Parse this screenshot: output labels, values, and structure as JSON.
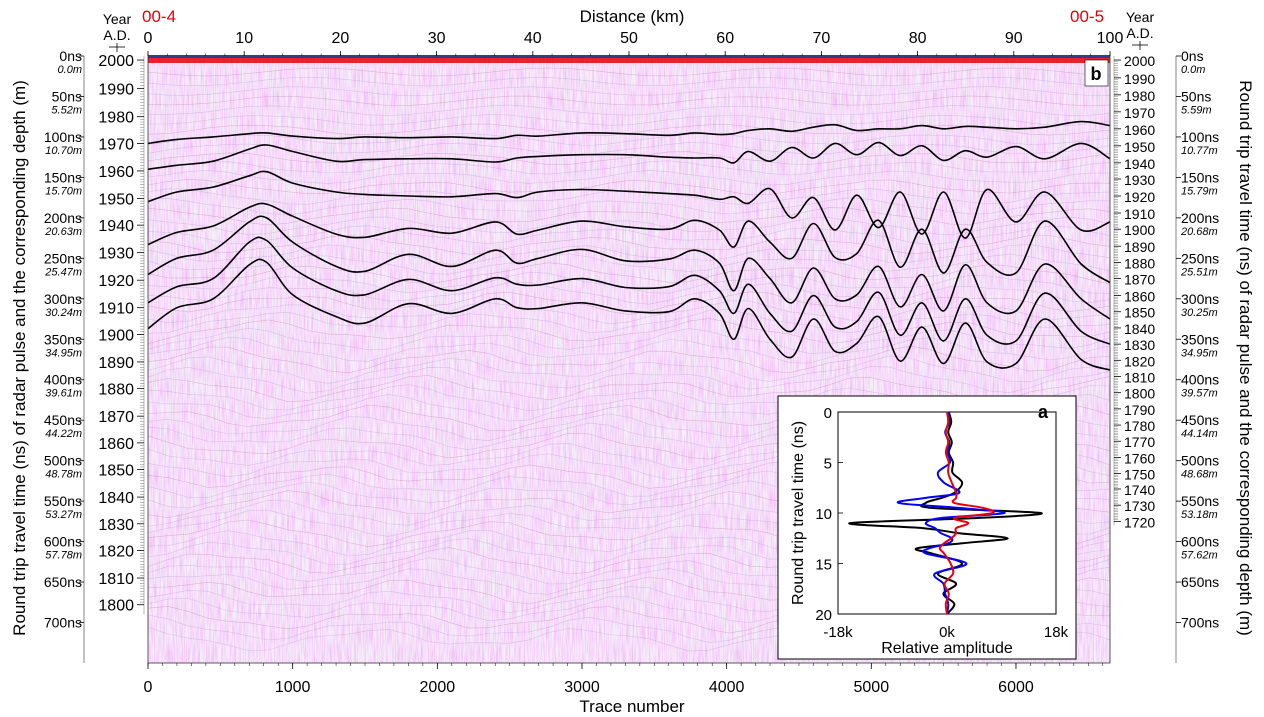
{
  "chart_data": [
    {
      "panel": "b",
      "type": "line",
      "top_left_label": "00-4",
      "top_right_label": "00-5",
      "title_top": "Distance (km)",
      "xlabel": "Trace number",
      "ylabel_left": "Round trip travel time (ns) of radar pulse and the corresponding depth (m)",
      "ylabel_right": "Round trip travel time (ns) of radar pulse and the corresponding depth (m)",
      "year_label": "Year",
      "year_label_sub": "A.D.",
      "accent_color": "#e8000b",
      "line_color": "#000000",
      "x_trace_range": [
        0,
        6650
      ],
      "x_trace_ticks": [
        "0",
        "1000",
        "2000",
        "3000",
        "4000",
        "5000",
        "6000"
      ],
      "distance_ticks": [
        "0",
        "10",
        "20",
        "30",
        "40",
        "50",
        "60",
        "70",
        "80",
        "90",
        "100"
      ],
      "distance_range": [
        0,
        100
      ],
      "y_range_ns": [
        0,
        750
      ],
      "left_time_ticks": [
        {
          "t": 0,
          "ns": "0ns",
          "depth": "0.0m"
        },
        {
          "t": 50,
          "ns": "50ns",
          "depth": "5.52m"
        },
        {
          "t": 100,
          "ns": "100ns",
          "depth": "10.70m"
        },
        {
          "t": 150,
          "ns": "150ns",
          "depth": "15.70m"
        },
        {
          "t": 200,
          "ns": "200ns",
          "depth": "20.63m"
        },
        {
          "t": 250,
          "ns": "250ns",
          "depth": "25.47m"
        },
        {
          "t": 300,
          "ns": "300ns",
          "depth": "30.24m"
        },
        {
          "t": 350,
          "ns": "350ns",
          "depth": "34.95m"
        },
        {
          "t": 400,
          "ns": "400ns",
          "depth": "39.61m"
        },
        {
          "t": 450,
          "ns": "450ns",
          "depth": "44.22m"
        },
        {
          "t": 500,
          "ns": "500ns",
          "depth": "48.78m"
        },
        {
          "t": 550,
          "ns": "550ns",
          "depth": "53.27m"
        },
        {
          "t": 600,
          "ns": "600ns",
          "depth": "57.78m"
        },
        {
          "t": 650,
          "ns": "650ns",
          "depth": ""
        },
        {
          "t": 700,
          "ns": "700ns",
          "depth": ""
        }
      ],
      "right_time_ticks": [
        {
          "t": 0,
          "ns": "0ns",
          "depth": "0.0m"
        },
        {
          "t": 50,
          "ns": "50ns",
          "depth": "5.59m"
        },
        {
          "t": 100,
          "ns": "100ns",
          "depth": "10.77m"
        },
        {
          "t": 150,
          "ns": "150ns",
          "depth": "15.79m"
        },
        {
          "t": 200,
          "ns": "200ns",
          "depth": "20.68m"
        },
        {
          "t": 250,
          "ns": "250ns",
          "depth": "25.51m"
        },
        {
          "t": 300,
          "ns": "300ns",
          "depth": "30.25m"
        },
        {
          "t": 350,
          "ns": "350ns",
          "depth": "34.95m"
        },
        {
          "t": 400,
          "ns": "400ns",
          "depth": "39.57m"
        },
        {
          "t": 450,
          "ns": "450ns",
          "depth": "44.14m"
        },
        {
          "t": 500,
          "ns": "500ns",
          "depth": "48.68m"
        },
        {
          "t": 550,
          "ns": "550ns",
          "depth": "53.18m"
        },
        {
          "t": 600,
          "ns": "600ns",
          "depth": "57.62m"
        },
        {
          "t": 650,
          "ns": "650ns",
          "depth": ""
        },
        {
          "t": 700,
          "ns": "700ns",
          "depth": ""
        }
      ],
      "left_year_ticks": [
        {
          "year": "2000",
          "t": 5
        },
        {
          "year": "1990",
          "t": 40
        },
        {
          "year": "1980",
          "t": 75
        },
        {
          "year": "1970",
          "t": 108
        },
        {
          "year": "1960",
          "t": 142
        },
        {
          "year": "1950",
          "t": 176
        },
        {
          "year": "1940",
          "t": 209
        },
        {
          "year": "1930",
          "t": 243
        },
        {
          "year": "1920",
          "t": 277
        },
        {
          "year": "1910",
          "t": 311
        },
        {
          "year": "1900",
          "t": 344
        },
        {
          "year": "1890",
          "t": 378
        },
        {
          "year": "1880",
          "t": 411
        },
        {
          "year": "1870",
          "t": 445
        },
        {
          "year": "1860",
          "t": 478
        },
        {
          "year": "1850",
          "t": 511
        },
        {
          "year": "1840",
          "t": 545
        },
        {
          "year": "1830",
          "t": 578
        },
        {
          "year": "1820",
          "t": 611
        },
        {
          "year": "1810",
          "t": 645
        },
        {
          "year": "1800",
          "t": 678
        }
      ],
      "right_year_ticks": [
        {
          "year": "2000",
          "t": 5
        },
        {
          "year": "1990",
          "t": 27
        },
        {
          "year": "1980",
          "t": 48
        },
        {
          "year": "1970",
          "t": 69
        },
        {
          "year": "1960",
          "t": 90
        },
        {
          "year": "1950",
          "t": 111
        },
        {
          "year": "1940",
          "t": 132
        },
        {
          "year": "1930",
          "t": 152
        },
        {
          "year": "1920",
          "t": 173
        },
        {
          "year": "1910",
          "t": 194
        },
        {
          "year": "1900",
          "t": 214
        },
        {
          "year": "1890",
          "t": 235
        },
        {
          "year": "1880",
          "t": 255
        },
        {
          "year": "1870",
          "t": 275
        },
        {
          "year": "1860",
          "t": 296
        },
        {
          "year": "1850",
          "t": 316
        },
        {
          "year": "1840",
          "t": 336
        },
        {
          "year": "1830",
          "t": 356
        },
        {
          "year": "1820",
          "t": 376
        },
        {
          "year": "1810",
          "t": 396
        },
        {
          "year": "1800",
          "t": 416
        },
        {
          "year": "1790",
          "t": 436
        },
        {
          "year": "1780",
          "t": 456
        },
        {
          "year": "1770",
          "t": 476
        },
        {
          "year": "1760",
          "t": 496
        },
        {
          "year": "1750",
          "t": 516
        },
        {
          "year": "1740",
          "t": 535
        },
        {
          "year": "1730",
          "t": 555
        },
        {
          "year": "1720",
          "t": 575
        }
      ],
      "horizons_traces": [
        0,
        200,
        450,
        700,
        820,
        1000,
        1300,
        1500,
        1800,
        2100,
        2400,
        2550,
        2700,
        3000,
        3300,
        3600,
        3780,
        3950,
        4050,
        4150,
        4300,
        4450,
        4600,
        4750,
        4900,
        5050,
        5200,
        5350,
        5500,
        5650,
        5800,
        6000,
        6200,
        6450,
        6650
      ],
      "horizons": [
        {
          "name": "1970",
          "t": [
            108,
            103,
            100,
            96,
            95,
            99,
            102,
            100,
            101,
            100,
            102,
            98,
            99,
            95,
            96,
            98,
            95,
            97,
            96,
            92,
            90,
            93,
            88,
            85,
            92,
            90,
            90,
            86,
            90,
            87,
            88,
            90,
            88,
            81,
            86
          ]
        },
        {
          "name": "1950",
          "t": [
            140,
            135,
            130,
            115,
            110,
            118,
            130,
            128,
            127,
            127,
            131,
            126,
            124,
            122,
            122,
            125,
            126,
            126,
            132,
            118,
            130,
            113,
            126,
            108,
            122,
            107,
            123,
            111,
            129,
            117,
            125,
            112,
            127,
            108,
            127
          ]
        },
        {
          "name": "1920",
          "t": [
            180,
            168,
            162,
            148,
            143,
            157,
            168,
            171,
            173,
            174,
            170,
            175,
            168,
            165,
            167,
            170,
            172,
            177,
            174,
            182,
            164,
            200,
            175,
            215,
            172,
            212,
            168,
            220,
            168,
            225,
            165,
            205,
            168,
            215,
            205
          ]
        },
        {
          "name": "1890",
          "t": [
            233,
            218,
            210,
            187,
            183,
            198,
            220,
            224,
            213,
            219,
            205,
            220,
            215,
            204,
            211,
            214,
            203,
            215,
            236,
            204,
            230,
            250,
            207,
            249,
            244,
            203,
            261,
            214,
            268,
            214,
            255,
            268,
            204,
            257,
            280
          ]
        },
        {
          "name": "1870",
          "t": [
            270,
            250,
            240,
            205,
            200,
            230,
            260,
            266,
            245,
            260,
            240,
            256,
            250,
            239,
            253,
            251,
            240,
            256,
            290,
            250,
            275,
            305,
            262,
            300,
            295,
            260,
            310,
            270,
            315,
            258,
            305,
            315,
            257,
            300,
            325
          ]
        },
        {
          "name": "1850",
          "t": [
            305,
            285,
            275,
            230,
            228,
            262,
            290,
            295,
            276,
            290,
            274,
            282,
            283,
            275,
            286,
            285,
            271,
            290,
            318,
            282,
            318,
            340,
            296,
            335,
            328,
            292,
            345,
            305,
            352,
            300,
            345,
            352,
            293,
            340,
            356
          ]
        },
        {
          "name": "1830",
          "t": [
            337,
            311,
            300,
            258,
            255,
            295,
            322,
            330,
            306,
            318,
            300,
            311,
            312,
            305,
            315,
            316,
            300,
            318,
            350,
            312,
            350,
            372,
            325,
            365,
            355,
            322,
            377,
            335,
            380,
            330,
            378,
            380,
            325,
            375,
            388
          ]
        }
      ]
    },
    {
      "panel": "a",
      "type": "line",
      "xlabel": "Relative amplitude",
      "ylabel": "Round trip travel time (ns)",
      "xlim": [
        -18000,
        18000
      ],
      "ylim": [
        0,
        20
      ],
      "x_ticks": [
        "-18k",
        "0k",
        "18k"
      ],
      "y_ticks": [
        "0",
        "5",
        "10",
        "15",
        "20"
      ],
      "t": [
        0,
        1,
        2,
        3,
        4,
        5,
        6,
        7,
        8,
        8.5,
        9,
        9.5,
        10,
        10.5,
        11,
        11.5,
        12,
        12.5,
        13,
        13.5,
        14,
        15,
        16,
        17,
        18,
        19,
        20
      ],
      "series": [
        {
          "color": "#000000",
          "values": [
            300,
            700,
            200,
            800,
            300,
            1000,
            900,
            2500,
            1200,
            -900,
            -3500,
            -2500,
            15500,
            5000,
            -16000,
            -4000,
            2000,
            10000,
            2500,
            -5000,
            -2500,
            2500,
            -1500,
            1500,
            -600,
            1200,
            0
          ]
        },
        {
          "color": "#0000ff",
          "values": [
            200,
            400,
            -300,
            400,
            100,
            500,
            -1500,
            -500,
            2000,
            -3500,
            -8000,
            2000,
            9500,
            -1000,
            -3500,
            -2000,
            -1000,
            800,
            200,
            -3000,
            -3500,
            3200,
            -2000,
            -600,
            -300,
            200,
            0
          ]
        },
        {
          "color": "#e8000b",
          "values": [
            0,
            200,
            -200,
            200,
            -200,
            300,
            200,
            800,
            1500,
            1500,
            1200,
            6000,
            7500,
            1200,
            3500,
            1500,
            1500,
            700,
            -500,
            -1200,
            -500,
            600,
            1000,
            -400,
            300,
            -200,
            0
          ]
        }
      ]
    }
  ]
}
